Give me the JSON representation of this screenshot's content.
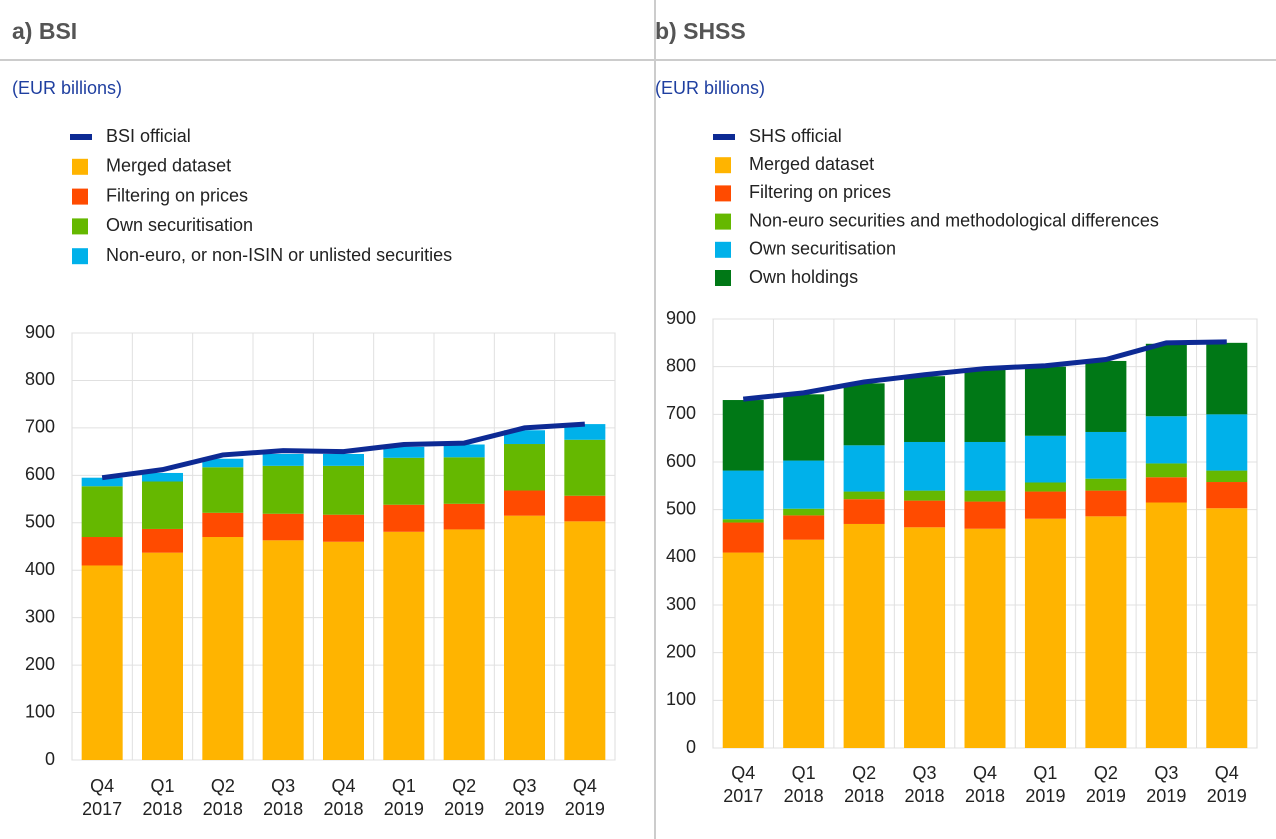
{
  "chart_data": [
    {
      "type": "bar",
      "stacked": true,
      "title": "a) BSI",
      "subtitle": "(EUR billions)",
      "categories": [
        "Q4\n2017",
        "Q1\n2018",
        "Q2\n2018",
        "Q3\n2018",
        "Q4\n2018",
        "Q1\n2019",
        "Q2\n2019",
        "Q3\n2019",
        "Q4\n2019"
      ],
      "ylim": [
        0,
        900
      ],
      "yticks": [
        0,
        100,
        200,
        300,
        400,
        500,
        600,
        700,
        800,
        900
      ],
      "grid": true,
      "series": [
        {
          "name": "BSI official",
          "type": "line",
          "color": "#0d2a94",
          "values": [
            595,
            612,
            643,
            652,
            650,
            665,
            668,
            700,
            708
          ]
        },
        {
          "name": "Merged dataset",
          "color": "#ffb400",
          "values": [
            410,
            437,
            470,
            463,
            460,
            481,
            486,
            515,
            503
          ]
        },
        {
          "name": "Filtering on prices",
          "color": "#ff4b00",
          "values": [
            60,
            50,
            51,
            56,
            57,
            57,
            54,
            53,
            54
          ]
        },
        {
          "name": "Own securitisation",
          "color": "#65b800",
          "values": [
            107,
            100,
            96,
            101,
            103,
            99,
            98,
            98,
            118
          ]
        },
        {
          "name": "Non-euro, or non-ISIN or unlisted securities",
          "color": "#00b1ea",
          "values": [
            18,
            18,
            18,
            25,
            25,
            23,
            27,
            29,
            33
          ]
        }
      ]
    },
    {
      "type": "bar",
      "stacked": true,
      "title": "b) SHSS",
      "subtitle": "(EUR billions)",
      "categories": [
        "Q4\n2017",
        "Q1\n2018",
        "Q2\n2018",
        "Q3\n2018",
        "Q4\n2018",
        "Q1\n2019",
        "Q2\n2019",
        "Q3\n2019",
        "Q4\n2019"
      ],
      "ylim": [
        0,
        900
      ],
      "yticks": [
        0,
        100,
        200,
        300,
        400,
        500,
        600,
        700,
        800,
        900
      ],
      "grid": true,
      "series": [
        {
          "name": "SHS official",
          "type": "line",
          "color": "#0d2a94",
          "values": [
            732,
            745,
            768,
            783,
            796,
            802,
            815,
            850,
            852
          ]
        },
        {
          "name": "Merged dataset",
          "color": "#ffb400",
          "values": [
            410,
            437,
            470,
            463,
            460,
            481,
            486,
            515,
            503
          ]
        },
        {
          "name": "Filtering on prices",
          "color": "#ff4b00",
          "values": [
            63,
            51,
            52,
            56,
            57,
            57,
            54,
            53,
            55
          ]
        },
        {
          "name": "Non-euro securities and methodological differences",
          "color": "#65b800",
          "values": [
            7,
            14,
            16,
            21,
            23,
            19,
            25,
            29,
            24
          ]
        },
        {
          "name": "Own securitisation",
          "color": "#00b1ea",
          "values": [
            102,
            101,
            97,
            102,
            102,
            98,
            98,
            99,
            118
          ]
        },
        {
          "name": "Own holdings",
          "color": "#007816",
          "values": [
            148,
            139,
            130,
            138,
            151,
            145,
            149,
            152,
            150
          ]
        }
      ]
    }
  ]
}
